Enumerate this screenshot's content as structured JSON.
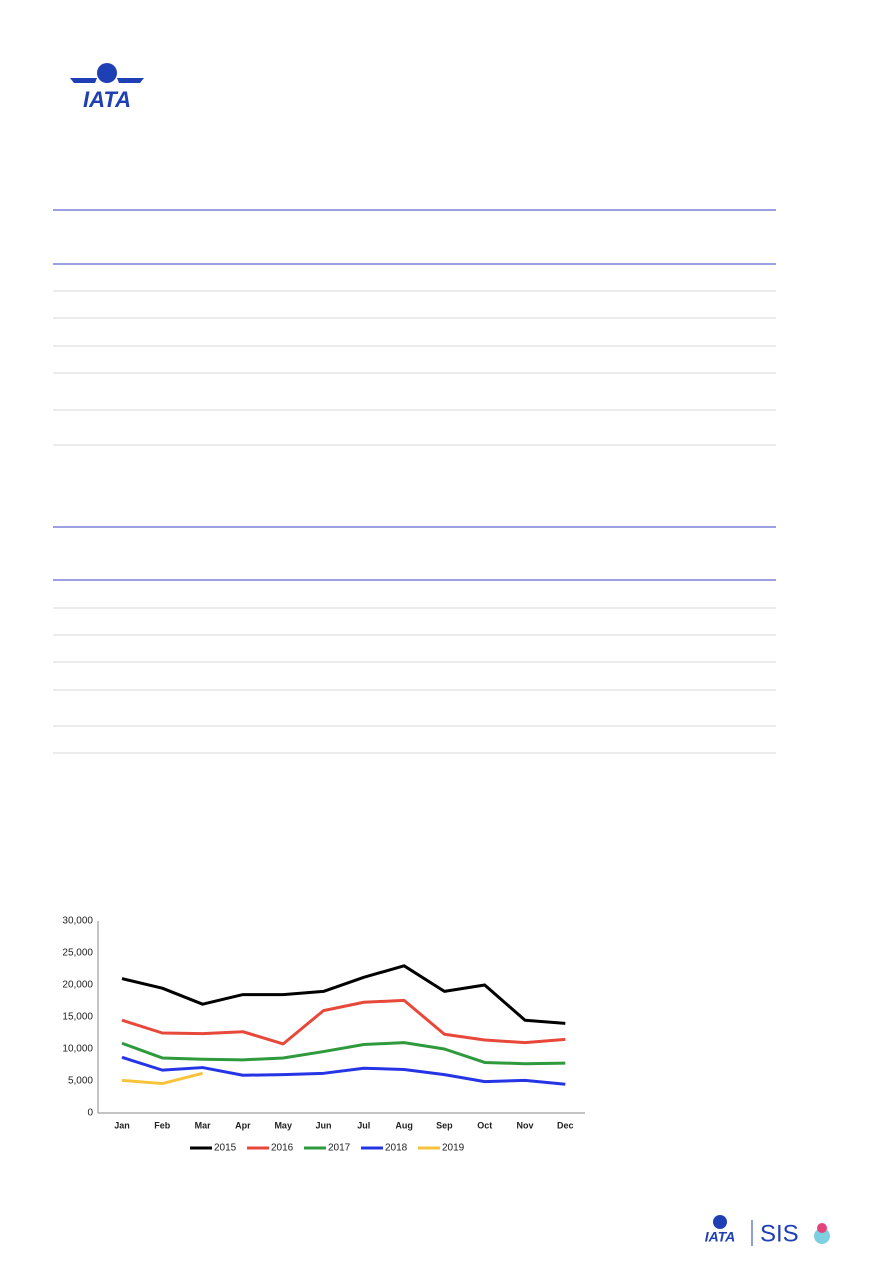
{
  "header": {
    "logo": "IATA"
  },
  "footer": {
    "logo": "IATA",
    "product": "SIS"
  },
  "chart_data": {
    "type": "line",
    "categories": [
      "Jan",
      "Feb",
      "Mar",
      "Apr",
      "May",
      "Jun",
      "Jul",
      "Aug",
      "Sep",
      "Oct",
      "Nov",
      "Dec"
    ],
    "series": [
      {
        "name": "2015",
        "color": "#000000",
        "values": [
          21000,
          19500,
          17000,
          18500,
          18500,
          19000,
          21200,
          23000,
          19000,
          20000,
          14500,
          14000
        ]
      },
      {
        "name": "2016",
        "color": "#e8483a",
        "values": [
          14500,
          12500,
          12400,
          12700,
          10800,
          16000,
          17300,
          17600,
          12300,
          11400,
          11000,
          11500
        ]
      },
      {
        "name": "2017",
        "color": "#2e9a3c",
        "values": [
          10900,
          8600,
          8400,
          8300,
          8600,
          9600,
          10700,
          11000,
          10000,
          7900,
          7700,
          7800
        ]
      },
      {
        "name": "2018",
        "color": "#2535e6",
        "values": [
          8700,
          6700,
          7100,
          5900,
          6000,
          6200,
          7000,
          6800,
          6000,
          4900,
          5100,
          4500
        ]
      },
      {
        "name": "2019",
        "color": "#f6c33b",
        "values": [
          5100,
          4600,
          6200,
          null,
          null,
          null,
          null,
          null,
          null,
          null,
          null,
          null
        ]
      }
    ],
    "ylim": [
      0,
      30000
    ],
    "yticks": [
      0,
      {
        "value": 5000,
        "label": "5,000"
      },
      {
        "value": 10000,
        "label": "10,000"
      },
      {
        "value": 15000,
        "label": "15,000"
      },
      {
        "value": 20000,
        "label": "20,000"
      },
      {
        "value": 25000,
        "label": "25,000"
      },
      {
        "value": 30000,
        "label": "30,000"
      }
    ],
    "grid": false,
    "legend": "bottom"
  }
}
